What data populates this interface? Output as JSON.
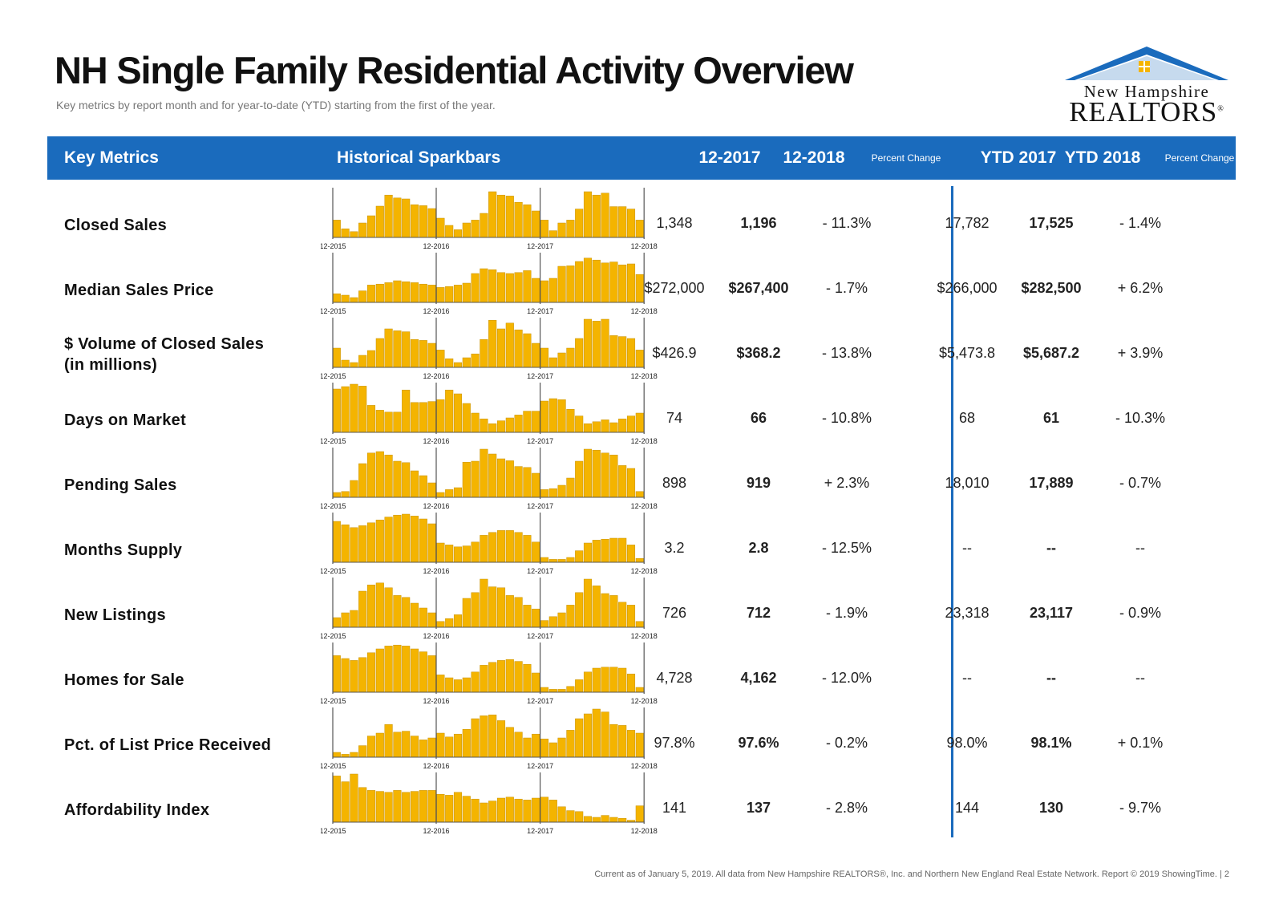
{
  "header": {
    "title": "NH Single Family Residential Activity Overview",
    "subtitle": "Key metrics by report month and for year-to-date (YTD) starting from the first of the year."
  },
  "logo": {
    "line1": "New Hampshire",
    "line2": "REALTORS",
    "mark": "®"
  },
  "colors": {
    "header_bg": "#1a6bbd",
    "bar": "#f4b400",
    "bar_edge": "#c68f00"
  },
  "columns": {
    "metrics": "Key Metrics",
    "sparkbars": "Historical Sparkbars",
    "m1": "12-2017",
    "m2": "12-2018",
    "pct": "Percent Change",
    "ytd1": "YTD 2017",
    "ytd2": "YTD 2018",
    "pct_ytd": "Percent Change"
  },
  "spark_ticks": [
    "12-2015",
    "12-2016",
    "12-2017",
    "12-2018"
  ],
  "rows": [
    {
      "label": "Closed Sales",
      "v1": "1,348",
      "v2": "1,196",
      "pct": "- 11.3%",
      "ytd1": "17,782",
      "ytd2": "17,525",
      "ypct": "- 1.4%",
      "bars": [
        36,
        18,
        12,
        30,
        45,
        65,
        88,
        82,
        80,
        68,
        66,
        60,
        40,
        25,
        16,
        30,
        36,
        50,
        95,
        88,
        86,
        73,
        68,
        55,
        36,
        14,
        30,
        36,
        59,
        95,
        88,
        92,
        64,
        64,
        59,
        36
      ]
    },
    {
      "label": "Median Sales Price",
      "v1": "$272,000",
      "v2": "$267,400",
      "pct": "- 1.7%",
      "ytd1": "$266,000",
      "ytd2": "$282,500",
      "ypct": "+ 6.2%",
      "bars": [
        18,
        15,
        10,
        24,
        36,
        38,
        41,
        45,
        43,
        41,
        38,
        36,
        31,
        33,
        36,
        40,
        60,
        70,
        68,
        62,
        60,
        62,
        66,
        50,
        45,
        50,
        75,
        76,
        85,
        92,
        88,
        82,
        84,
        78,
        80,
        58
      ]
    },
    {
      "label": "$ Volume of Closed Sales\n(in millions)",
      "v1": "$426.9",
      "v2": "$368.2",
      "pct": "- 13.8%",
      "ytd1": "$5,473.8",
      "ytd2": "$5,687.2",
      "ypct": "+ 3.9%",
      "bars": [
        40,
        15,
        10,
        25,
        35,
        60,
        80,
        76,
        74,
        58,
        56,
        50,
        36,
        18,
        10,
        20,
        28,
        58,
        98,
        80,
        92,
        78,
        70,
        50,
        40,
        20,
        30,
        40,
        60,
        100,
        96,
        100,
        66,
        64,
        60,
        36
      ]
    },
    {
      "label": "Days on Market",
      "v1": "74",
      "v2": "66",
      "pct": "- 10.8%",
      "ytd1": "68",
      "ytd2": "61",
      "ypct": "- 10.3%",
      "bars": [
        90,
        95,
        100,
        96,
        56,
        46,
        42,
        42,
        88,
        62,
        62,
        64,
        68,
        88,
        80,
        60,
        40,
        28,
        18,
        24,
        30,
        36,
        44,
        44,
        65,
        70,
        68,
        48,
        34,
        18,
        22,
        26,
        20,
        28,
        34,
        40
      ]
    },
    {
      "label": "Pending Sales",
      "v1": "898",
      "v2": "919",
      "pct": "+ 2.3%",
      "ytd1": "18,010",
      "ytd2": "17,889",
      "ypct": "- 0.7%",
      "bars": [
        10,
        12,
        35,
        70,
        92,
        95,
        88,
        75,
        72,
        55,
        45,
        30,
        10,
        16,
        20,
        73,
        75,
        100,
        90,
        80,
        76,
        64,
        62,
        50,
        16,
        18,
        25,
        40,
        75,
        100,
        98,
        92,
        88,
        66,
        60,
        12
      ]
    },
    {
      "label": "Months Supply",
      "v1": "3.2",
      "v2": "2.8",
      "pct": "- 12.5%",
      "ytd1": "--",
      "ytd2": "--",
      "ypct": "--",
      "bars": [
        85,
        78,
        72,
        76,
        82,
        88,
        94,
        98,
        100,
        96,
        90,
        80,
        40,
        36,
        32,
        34,
        42,
        56,
        62,
        66,
        66,
        62,
        56,
        42,
        10,
        6,
        6,
        10,
        24,
        40,
        46,
        48,
        50,
        50,
        36,
        8
      ]
    },
    {
      "label": "New Listings",
      "v1": "726",
      "v2": "712",
      "pct": "- 1.9%",
      "ytd1": "23,318",
      "ytd2": "23,117",
      "ypct": "- 0.9%",
      "bars": [
        20,
        30,
        35,
        75,
        88,
        92,
        82,
        66,
        62,
        50,
        40,
        30,
        12,
        18,
        26,
        60,
        72,
        100,
        84,
        82,
        66,
        62,
        46,
        38,
        14,
        22,
        30,
        46,
        72,
        100,
        86,
        70,
        66,
        52,
        46,
        12
      ]
    },
    {
      "label": "Homes for Sale",
      "v1": "4,728",
      "v2": "4,162",
      "pct": "- 12.0%",
      "ytd1": "--",
      "ytd2": "--",
      "ypct": "--",
      "bars": [
        76,
        70,
        66,
        72,
        82,
        90,
        96,
        98,
        96,
        90,
        84,
        76,
        36,
        30,
        26,
        30,
        42,
        56,
        62,
        66,
        68,
        64,
        58,
        40,
        10,
        6,
        6,
        12,
        26,
        42,
        50,
        52,
        52,
        50,
        38,
        10
      ]
    },
    {
      "label": "Pct. of List Price Received",
      "v1": "97.8%",
      "v2": "97.6%",
      "pct": "- 0.2%",
      "ytd1": "98.0%",
      "ytd2": "98.1%",
      "ypct": "+ 0.1%",
      "bars": [
        10,
        6,
        10,
        24,
        44,
        50,
        68,
        52,
        54,
        44,
        36,
        40,
        50,
        42,
        48,
        58,
        80,
        86,
        88,
        76,
        62,
        52,
        40,
        48,
        38,
        30,
        40,
        56,
        80,
        90,
        100,
        94,
        68,
        66,
        56,
        50
      ]
    },
    {
      "label": "Affordability Index",
      "v1": "141",
      "v2": "137",
      "pct": "- 2.8%",
      "ytd1": "144",
      "ytd2": "130",
      "ypct": "- 9.7%",
      "bars": [
        96,
        84,
        100,
        72,
        66,
        64,
        62,
        66,
        62,
        64,
        66,
        66,
        58,
        56,
        62,
        54,
        48,
        40,
        44,
        50,
        52,
        48,
        46,
        50,
        52,
        46,
        32,
        24,
        22,
        12,
        10,
        14,
        10,
        8,
        4,
        34
      ]
    }
  ],
  "footer": "Current as of January 5, 2019.  All data from New Hampshire REALTORS®, Inc. and Northern New England Real Estate Network. Report © 2019 ShowingTime.  |  2"
}
